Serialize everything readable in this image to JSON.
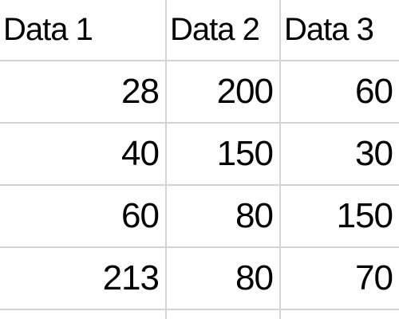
{
  "spreadsheet": {
    "headers": [
      "Data 1",
      "Data 2",
      "Data 3"
    ],
    "rows": [
      [
        "28",
        "200",
        "60"
      ],
      [
        "40",
        "150",
        "30"
      ],
      [
        "60",
        "80",
        "150"
      ],
      [
        "213",
        "80",
        "70"
      ]
    ],
    "colors": {
      "gridline": "#d4d4d4",
      "text": "#000000",
      "background": "#ffffff"
    }
  }
}
